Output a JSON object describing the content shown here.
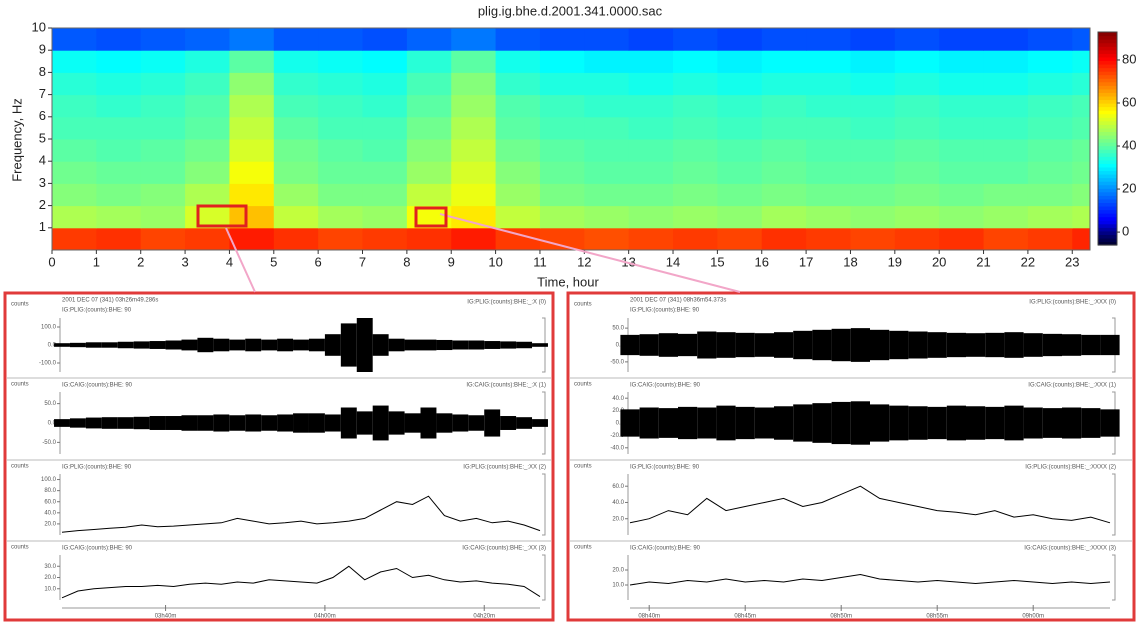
{
  "chart_data": [
    {
      "type": "heatmap",
      "title": "plig.ig.bhe.d.2001.341.0000.sac",
      "x_label": "Time, hour",
      "y_label": "Frequency, Hz",
      "xlim": [
        0,
        23.4
      ],
      "xticks": [
        0,
        1,
        2,
        3,
        4,
        5,
        6,
        7,
        8,
        9,
        10,
        11,
        12,
        13,
        14,
        15,
        16,
        17,
        18,
        19,
        20,
        21,
        22,
        23
      ],
      "ylim": [
        0,
        10
      ],
      "yticks": [
        1,
        2,
        3,
        4,
        5,
        6,
        7,
        8,
        9,
        10
      ],
      "xbins": [
        0,
        1,
        2,
        3,
        4,
        5,
        6,
        7,
        8,
        9,
        10,
        11,
        12,
        13,
        14,
        15,
        16,
        17,
        18,
        19,
        20,
        21,
        22,
        23,
        23.4
      ],
      "ybins": [
        0,
        1,
        2,
        3,
        4,
        5,
        6,
        7,
        8,
        9,
        10
      ],
      "colormap": "jet",
      "clim": [
        -6,
        93
      ],
      "cticks": [
        0,
        20,
        40,
        60,
        80
      ],
      "z": [
        [
          75,
          76,
          74,
          75,
          78,
          76,
          74,
          75,
          76,
          78,
          75,
          74,
          73,
          74,
          75,
          74,
          76,
          75,
          74,
          75,
          76,
          74,
          75,
          77
        ],
        [
          48,
          47,
          46,
          52,
          62,
          50,
          47,
          46,
          55,
          58,
          50,
          47,
          46,
          45,
          46,
          45,
          47,
          46,
          45,
          46,
          45,
          46,
          47,
          48
        ],
        [
          44,
          43,
          44,
          48,
          58,
          46,
          43,
          43,
          50,
          54,
          46,
          43,
          42,
          42,
          43,
          42,
          43,
          42,
          42,
          43,
          42,
          43,
          43,
          44
        ],
        [
          42,
          41,
          41,
          44,
          55,
          43,
          41,
          41,
          46,
          52,
          44,
          41,
          40,
          40,
          41,
          40,
          41,
          40,
          40,
          41,
          40,
          40,
          41,
          42
        ],
        [
          40,
          39,
          40,
          42,
          52,
          42,
          40,
          39,
          44,
          50,
          42,
          40,
          39,
          39,
          40,
          39,
          40,
          39,
          39,
          40,
          39,
          39,
          40,
          41
        ],
        [
          38,
          38,
          38,
          40,
          50,
          40,
          38,
          38,
          42,
          48,
          40,
          38,
          38,
          37,
          38,
          37,
          38,
          38,
          37,
          38,
          37,
          37,
          38,
          39
        ],
        [
          37,
          36,
          37,
          39,
          48,
          38,
          37,
          36,
          40,
          46,
          39,
          37,
          36,
          36,
          37,
          36,
          37,
          36,
          36,
          37,
          36,
          36,
          37,
          38
        ],
        [
          35,
          34,
          35,
          37,
          45,
          36,
          35,
          34,
          38,
          44,
          36,
          34,
          34,
          33,
          34,
          33,
          34,
          34,
          33,
          34,
          33,
          33,
          34,
          35
        ],
        [
          32,
          31,
          32,
          34,
          40,
          33,
          32,
          31,
          35,
          40,
          33,
          31,
          30,
          30,
          31,
          30,
          31,
          31,
          30,
          31,
          30,
          30,
          31,
          32
        ],
        [
          15,
          14,
          15,
          16,
          18,
          15,
          15,
          14,
          16,
          18,
          15,
          14,
          14,
          13,
          14,
          13,
          14,
          14,
          13,
          14,
          13,
          13,
          14,
          15
        ]
      ]
    },
    {
      "type": "waveform",
      "header": "2001 DEC 07 (341) 03h26m49.286s",
      "border_color": "#e03a3a",
      "color": "#000000",
      "xlim": [
        207,
        267
      ],
      "xticks": [
        {
          "value": 220,
          "label": "03h40m"
        },
        {
          "value": 240,
          "label": "04h00m"
        },
        {
          "value": 260,
          "label": "04h20m"
        }
      ],
      "x": [
        207,
        209,
        211,
        213,
        215,
        217,
        219,
        221,
        223,
        225,
        227,
        229,
        231,
        233,
        235,
        237,
        239,
        241,
        243,
        245,
        247,
        249,
        251,
        253,
        255,
        257,
        259,
        261,
        263,
        265,
        267
      ],
      "traces": [
        {
          "y_label": "counts",
          "name": "IG:PLIG:(counts):BHE: 90",
          "channel": "IG:PLIG:(counts):BHE:_:X (0)",
          "style": "envelope",
          "ylim": [
            -150,
            150
          ],
          "yticks": [
            {
              "value": 100,
              "label": "100.0"
            },
            {
              "value": 0,
              "label": "0.0"
            },
            {
              "value": -100,
              "label": "-100.0"
            }
          ],
          "values": [
            10,
            12,
            15,
            15,
            18,
            20,
            22,
            25,
            30,
            40,
            35,
            30,
            35,
            30,
            35,
            30,
            35,
            60,
            120,
            150,
            60,
            35,
            30,
            30,
            28,
            25,
            25,
            22,
            20,
            18,
            10
          ]
        },
        {
          "y_label": "counts",
          "name": "IG:CAIG:(counts):BHE: 90",
          "channel": "IG:CAIG:(counts):BHE:_:X (1)",
          "style": "envelope",
          "ylim": [
            -80,
            80
          ],
          "yticks": [
            {
              "value": 50,
              "label": "50.0"
            },
            {
              "value": 0,
              "label": "0.0"
            },
            {
              "value": -50,
              "label": "-50.0"
            }
          ],
          "values": [
            10,
            12,
            14,
            15,
            15,
            16,
            18,
            18,
            20,
            20,
            22,
            20,
            22,
            20,
            22,
            25,
            25,
            22,
            40,
            30,
            45,
            30,
            25,
            40,
            25,
            22,
            20,
            35,
            18,
            15,
            10
          ]
        },
        {
          "y_label": "counts",
          "name": "IG:PLIG:(counts):BHE: 90",
          "channel": "IG:PLIG:(counts):BHE:_:XX (2)",
          "style": "line",
          "ylim": [
            0,
            110
          ],
          "yticks": [
            {
              "value": 100,
              "label": "100.0"
            },
            {
              "value": 80,
              "label": "80.0"
            },
            {
              "value": 60,
              "label": "60.0"
            },
            {
              "value": 40,
              "label": "40.0"
            },
            {
              "value": 20,
              "label": "20.0"
            }
          ],
          "values": [
            5,
            8,
            10,
            12,
            14,
            18,
            15,
            16,
            18,
            20,
            22,
            30,
            25,
            20,
            22,
            25,
            20,
            22,
            25,
            30,
            45,
            60,
            55,
            70,
            35,
            25,
            30,
            22,
            25,
            18,
            8
          ]
        },
        {
          "y_label": "counts",
          "name": "IG:CAIG:(counts):BHE: 90",
          "channel": "IG:CAIG:(counts):BHE:_:XX (3)",
          "style": "line",
          "ylim": [
            0,
            40
          ],
          "yticks": [
            {
              "value": 30,
              "label": "30.0"
            },
            {
              "value": 20,
              "label": "20.0"
            },
            {
              "value": 10,
              "label": "10.0"
            }
          ],
          "values": [
            2,
            8,
            10,
            11,
            12,
            12,
            13,
            12,
            14,
            15,
            14,
            16,
            15,
            18,
            17,
            16,
            15,
            20,
            30,
            18,
            25,
            28,
            20,
            22,
            18,
            16,
            17,
            15,
            14,
            12,
            3
          ]
        }
      ]
    },
    {
      "type": "waveform",
      "header": "2001 DEC 07 (341) 08h36m54.373s",
      "border_color": "#e03a3a",
      "color": "#000000",
      "xlim": [
        519,
        544
      ],
      "xticks": [
        {
          "value": 520,
          "label": "08h40m"
        },
        {
          "value": 525,
          "label": "08h45m"
        },
        {
          "value": 530,
          "label": "08h50m"
        },
        {
          "value": 535,
          "label": "08h55m"
        },
        {
          "value": 540,
          "label": "09h00m"
        }
      ],
      "x": [
        519,
        520,
        521,
        522,
        523,
        524,
        525,
        526,
        527,
        528,
        529,
        530,
        531,
        532,
        533,
        534,
        535,
        536,
        537,
        538,
        539,
        540,
        541,
        542,
        543,
        544
      ],
      "traces": [
        {
          "y_label": "counts",
          "name": "IG:PLIG:(counts):BHE: 90",
          "channel": "IG:PLIG:(counts):BHE:_:XXX (0)",
          "style": "envelope",
          "ylim": [
            -80,
            80
          ],
          "yticks": [
            {
              "value": 50,
              "label": "50.0"
            },
            {
              "value": 0,
              "label": "0.0"
            },
            {
              "value": -50,
              "label": "-50.0"
            }
          ],
          "values": [
            30,
            32,
            35,
            33,
            40,
            38,
            36,
            35,
            38,
            42,
            45,
            48,
            50,
            45,
            42,
            40,
            38,
            36,
            35,
            36,
            38,
            35,
            33,
            32,
            30,
            30
          ]
        },
        {
          "y_label": "counts",
          "name": "IG:CAIG:(counts):BHE: 90",
          "channel": "IG:CAIG:(counts):BHE:_:XXX (1)",
          "style": "envelope",
          "ylim": [
            -50,
            50
          ],
          "yticks": [
            {
              "value": 40,
              "label": "40.0"
            },
            {
              "value": 20,
              "label": "20.0"
            },
            {
              "value": 0,
              "label": "0.0"
            },
            {
              "value": -20,
              "label": "-20.0"
            },
            {
              "value": -40,
              "label": "-40.0"
            }
          ],
          "values": [
            22,
            25,
            24,
            26,
            25,
            28,
            26,
            25,
            27,
            30,
            32,
            34,
            35,
            30,
            28,
            27,
            26,
            28,
            27,
            26,
            28,
            25,
            24,
            25,
            24,
            22
          ]
        },
        {
          "y_label": "counts",
          "name": "IG:PLIG:(counts):BHE: 90",
          "channel": "IG:PLIG:(counts):BHE:_:XXXX (2)",
          "style": "line",
          "ylim": [
            0,
            75
          ],
          "yticks": [
            {
              "value": 60,
              "label": "60.0"
            },
            {
              "value": 40,
              "label": "40.0"
            },
            {
              "value": 20,
              "label": "20.0"
            }
          ],
          "values": [
            15,
            20,
            30,
            25,
            45,
            30,
            35,
            40,
            45,
            35,
            40,
            50,
            60,
            45,
            40,
            35,
            30,
            28,
            25,
            30,
            22,
            25,
            20,
            18,
            22,
            15
          ]
        },
        {
          "y_label": "counts",
          "name": "IG:CAIG:(counts):BHE: 90",
          "channel": "IG:CAIG:(counts):BHE:_:XXXX (3)",
          "style": "line",
          "ylim": [
            0,
            30
          ],
          "yticks": [
            {
              "value": 20,
              "label": "20.0"
            },
            {
              "value": 10,
              "label": "10.0"
            }
          ],
          "values": [
            10,
            12,
            11,
            13,
            12,
            14,
            12,
            13,
            12,
            14,
            13,
            15,
            17,
            14,
            13,
            12,
            13,
            12,
            11,
            12,
            13,
            12,
            11,
            12,
            11,
            12
          ]
        }
      ]
    }
  ]
}
